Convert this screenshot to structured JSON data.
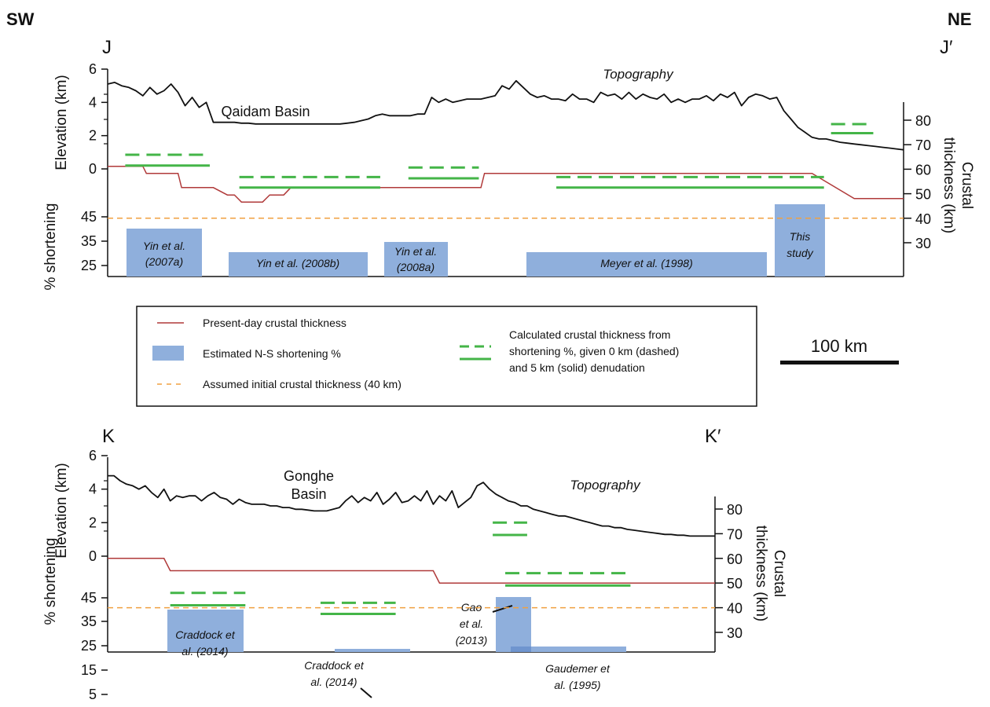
{
  "figure": {
    "corner_left": "SW",
    "corner_right": "NE",
    "scale_bar_label": "100 km"
  },
  "colors": {
    "topography": "#111111",
    "present_thickness": "#b03a3a",
    "shortening_bar": "#8fafdc",
    "shortening_bar_overlap": "#6f95cf",
    "calculated_thickness": "#44b548",
    "initial_thickness": "#f0a040"
  },
  "legend": {
    "items": [
      {
        "key": "present",
        "label": "Present-day crustal thickness"
      },
      {
        "key": "bar",
        "label": "Estimated N-S shortening %"
      },
      {
        "key": "initial",
        "label": "Assumed initial crustal thickness (40 km)"
      },
      {
        "key": "calc",
        "label_lines": [
          "Calculated crustal thickness from",
          "shortening %, given 0 km (dashed)",
          "and 5 km (solid) denudation"
        ]
      }
    ]
  },
  "chart_data": [
    {
      "type": "composite",
      "panel": "J",
      "section_start": "J",
      "section_end": "J′",
      "elevation_axis": {
        "label": "Elevation (km)",
        "ticks": [
          "6",
          "4",
          "2",
          "0"
        ],
        "range": [
          0,
          6
        ]
      },
      "shortening_axis": {
        "label": "% shortening",
        "ticks": [
          "45",
          "35",
          "25"
        ]
      },
      "thickness_axis": {
        "label_lines": [
          "Crustal",
          "thickness (km)"
        ],
        "ticks": [
          "80",
          "70",
          "60",
          "50",
          "40",
          "30"
        ],
        "range": [
          30,
          80
        ]
      },
      "basin_label": "Qaidam Basin",
      "topography_label": "Topography",
      "initial_thickness_km": 40,
      "topography_km": {
        "x": [
          0,
          10,
          20,
          30,
          40,
          50,
          60,
          70,
          80,
          90,
          100,
          110,
          120,
          130,
          140,
          150,
          160,
          170,
          180,
          190,
          200,
          210,
          220,
          230,
          240,
          250,
          260,
          270,
          280,
          290,
          300,
          310,
          320,
          330,
          340,
          350,
          360,
          370,
          380,
          390,
          400,
          410,
          420,
          430,
          440,
          450,
          460,
          470,
          480,
          490,
          500,
          510,
          520,
          530,
          540,
          550,
          560,
          570,
          580,
          590,
          600,
          610,
          620,
          630,
          640,
          650,
          660,
          670,
          680,
          690,
          700,
          710,
          720,
          730,
          740,
          750,
          760,
          770,
          780,
          790,
          800,
          810,
          820,
          830,
          840,
          850,
          860,
          870,
          880,
          890,
          900,
          910,
          920,
          930,
          940,
          950,
          960,
          970,
          980,
          990,
          1000,
          1010,
          1020,
          1030,
          1040,
          1050,
          1060,
          1070,
          1080,
          1090,
          1100,
          1110,
          1120,
          1130
        ],
        "y": [
          5.1,
          5.2,
          5.0,
          4.9,
          4.7,
          4.4,
          4.9,
          4.5,
          4.7,
          5.1,
          4.6,
          3.8,
          4.3,
          3.7,
          4.0,
          2.8,
          2.8,
          2.8,
          2.8,
          2.75,
          2.75,
          2.7,
          2.7,
          2.7,
          2.7,
          2.7,
          2.7,
          2.7,
          2.7,
          2.7,
          2.7,
          2.7,
          2.7,
          2.7,
          2.75,
          2.8,
          2.9,
          3.0,
          3.2,
          3.3,
          3.2,
          3.2,
          3.2,
          3.2,
          3.3,
          3.3,
          4.3,
          4.0,
          4.2,
          4.0,
          4.1,
          4.2,
          4.2,
          4.2,
          4.3,
          4.4,
          5.0,
          4.8,
          5.3,
          4.9,
          4.5,
          4.3,
          4.4,
          4.2,
          4.2,
          4.1,
          4.5,
          4.2,
          4.2,
          4.0,
          4.6,
          4.4,
          4.5,
          4.2,
          4.6,
          4.2,
          4.5,
          4.3,
          4.2,
          4.5,
          4.0,
          4.2,
          4.0,
          4.2,
          4.2,
          4.4,
          4.1,
          4.5,
          4.3,
          4.6,
          3.8,
          4.3,
          4.5,
          4.4,
          4.2,
          4.3,
          3.5,
          3.0,
          2.5,
          2.2,
          1.9,
          1.8,
          1.8,
          1.7,
          1.6,
          1.55,
          1.5,
          1.45,
          1.4,
          1.35,
          1.3,
          1.25,
          1.2,
          1.15
        ]
      },
      "present_thickness_km": {
        "x": [
          0,
          50,
          55,
          100,
          105,
          150,
          170,
          180,
          190,
          220,
          230,
          250,
          260,
          400,
          530,
          535,
          890,
          950,
          960,
          1000,
          1060,
          1130
        ],
        "y": [
          61.2,
          61.2,
          58.3,
          58.3,
          52.5,
          52.5,
          49.5,
          49.5,
          46.6,
          46.6,
          49.5,
          49.5,
          52.5,
          52.5,
          52.5,
          58.3,
          58.3,
          58.3,
          58.3,
          58.3,
          48.0,
          48.0
        ]
      },
      "shortening_estimates": [
        {
          "label_lines": [
            "Yin et al.",
            "(2007a)"
          ],
          "shortening_pct": 40,
          "x_range_km": [
            25,
            145
          ],
          "calc_dashed_km": 65.9,
          "calc_solid_km": 61.5,
          "calc_x_range_km": [
            25,
            145
          ]
        },
        {
          "label_lines": [
            "Yin et al. (2008b)"
          ],
          "shortening_pct": 30,
          "x_range_km": [
            187,
            387
          ],
          "calc_dashed_km": 56.8,
          "calc_solid_km": 52.5,
          "calc_x_range_km": [
            187,
            387
          ]
        },
        {
          "label_lines": [
            "Yin et al.",
            "(2008a)"
          ],
          "shortening_pct": 33,
          "x_range_km": [
            427,
            527
          ],
          "calc_dashed_km": 60.7,
          "calc_solid_km": 56.3,
          "calc_x_range_km": [
            427,
            527
          ]
        },
        {
          "label_lines": [
            "Meyer et al. (1998)"
          ],
          "shortening_pct": 30,
          "x_range_km": [
            637,
            1017
          ],
          "calc_dashed_km": 56.8,
          "calc_solid_km": 52.5,
          "calc_x_range_km": [
            637,
            1017
          ]
        },
        {
          "label_lines": [
            "This",
            "study"
          ],
          "shortening_pct": 47,
          "x_range_km": [
            1027,
            1107
          ],
          "calc_dashed_km": 78.4,
          "calc_solid_km": 74.7,
          "calc_x_range_km": [
            1027,
            1087
          ]
        }
      ]
    },
    {
      "type": "composite",
      "panel": "K",
      "section_start": "K",
      "section_end": "K′",
      "elevation_axis": {
        "label": "Elevation (km)",
        "ticks": [
          "6",
          "4",
          "2",
          "0"
        ],
        "range": [
          0,
          6
        ]
      },
      "shortening_axis": {
        "label": "% shortening",
        "ticks": [
          "45",
          "35",
          "25",
          "15",
          "5"
        ]
      },
      "thickness_axis": {
        "label_lines": [
          "Crustal",
          "thickness (km)"
        ],
        "ticks": [
          "80",
          "70",
          "60",
          "50",
          "40",
          "30"
        ],
        "range": [
          30,
          80
        ]
      },
      "basin_label_lines": [
        "Gonghe",
        "Basin"
      ],
      "topography_label": "Topography",
      "initial_thickness_km": 40,
      "topography_km": {
        "x": [
          0,
          10,
          20,
          30,
          40,
          50,
          60,
          70,
          80,
          90,
          100,
          110,
          120,
          130,
          140,
          150,
          160,
          170,
          180,
          190,
          200,
          210,
          220,
          230,
          240,
          250,
          260,
          270,
          280,
          290,
          300,
          310,
          320,
          330,
          340,
          350,
          360,
          370,
          380,
          390,
          400,
          410,
          420,
          430,
          440,
          450,
          460,
          470,
          480,
          490,
          500,
          510,
          520,
          530,
          540,
          550,
          560,
          570,
          580,
          590,
          600,
          610,
          620,
          630,
          640,
          650,
          660,
          670,
          680,
          690,
          700,
          710,
          720,
          730,
          740,
          750,
          760,
          770,
          780,
          790,
          800,
          810,
          820,
          830,
          840,
          850,
          860,
          870,
          880,
          890,
          900,
          910,
          920,
          930,
          940,
          950,
          960,
          970
        ],
        "y": [
          4.8,
          4.8,
          4.5,
          4.3,
          4.2,
          4.0,
          4.2,
          3.8,
          3.5,
          4.0,
          3.3,
          3.6,
          3.5,
          3.6,
          3.6,
          3.3,
          3.6,
          3.8,
          3.5,
          3.4,
          3.1,
          3.4,
          3.2,
          3.1,
          3.1,
          3.1,
          3.0,
          3.0,
          2.9,
          2.9,
          2.8,
          2.8,
          2.75,
          2.7,
          2.7,
          2.7,
          2.8,
          2.9,
          3.3,
          3.6,
          3.2,
          3.5,
          3.3,
          3.8,
          3.1,
          3.4,
          3.8,
          3.2,
          3.3,
          3.6,
          3.3,
          3.9,
          3.1,
          3.6,
          3.3,
          3.9,
          2.9,
          3.2,
          3.5,
          4.2,
          4.4,
          4.0,
          3.7,
          3.5,
          3.3,
          3.2,
          3.0,
          3.0,
          2.8,
          2.7,
          2.6,
          2.5,
          2.4,
          2.4,
          2.3,
          2.2,
          2.1,
          2.0,
          1.9,
          1.8,
          1.8,
          1.7,
          1.7,
          1.6,
          1.55,
          1.5,
          1.45,
          1.4,
          1.35,
          1.3,
          1.3,
          1.25,
          1.25,
          1.2,
          1.2,
          1.2,
          1.2,
          1.2
        ]
      },
      "present_thickness_km": {
        "x": [
          0,
          90,
          100,
          520,
          530,
          970
        ],
        "y": [
          60.0,
          60.0,
          55.0,
          55.0,
          50.0,
          50.0
        ]
      },
      "shortening_estimates": [
        {
          "label_lines": [
            "Craddock et",
            "al. (2014)"
          ],
          "shortening_pct": 13,
          "x_range_km": [
            100,
            220
          ],
          "calc_dashed_km": 46.0,
          "calc_solid_km": 41.0,
          "calc_x_range_km": [
            100,
            220
          ]
        },
        {
          "label_lines": [
            "Craddock et",
            "al. (2014)"
          ],
          "shortening_pct": 5,
          "x_range_km": [
            340,
            460
          ],
          "calc_dashed_km": 42.0,
          "calc_solid_km": 37.5,
          "calc_x_range_km": [
            340,
            460
          ]
        },
        {
          "label_lines": [
            "Gao",
            "et al.",
            "(2013)"
          ],
          "shortening_pct": 47,
          "x_range_km": [
            615,
            705
          ],
          "calc_dashed_km": 74.5,
          "calc_solid_km": 69.5,
          "calc_x_range_km": [
            615,
            670
          ]
        },
        {
          "label_lines": [
            "Gaudemer et",
            "al. (1995)"
          ],
          "shortening_pct": 26,
          "x_range_km": [
            635,
            835
          ],
          "calc_dashed_km": 54.0,
          "calc_solid_km": 49.0,
          "calc_x_range_km": [
            635,
            835
          ]
        }
      ]
    }
  ]
}
